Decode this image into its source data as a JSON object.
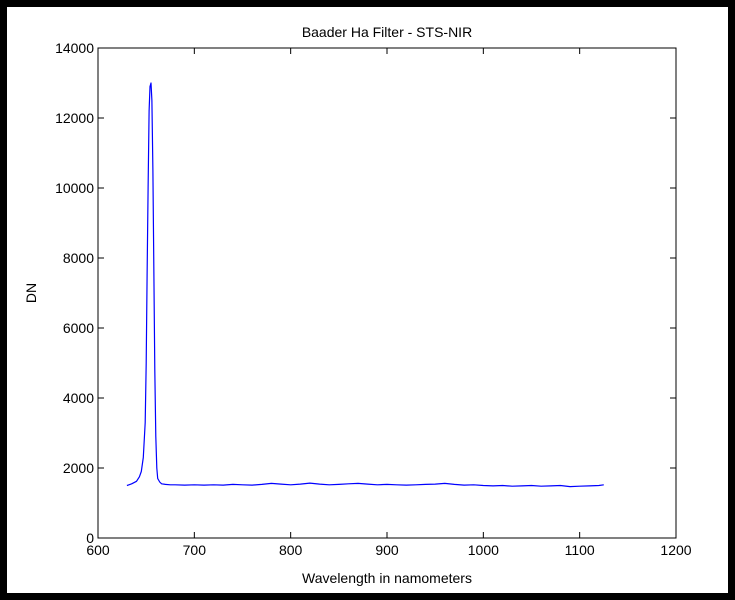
{
  "colors": {
    "outer_border": "#000000",
    "figure_background": "#ffffff",
    "axes_background": "#ffffff",
    "axis_color": "#000000",
    "series_color": "#0000ff"
  },
  "chart_data": {
    "type": "line",
    "title": "Baader Ha Filter - STS-NIR",
    "xlabel": "Wavelength in namometers",
    "ylabel": "DN",
    "xlim": [
      600,
      1200
    ],
    "ylim": [
      0,
      14000
    ],
    "xticks": [
      600,
      700,
      800,
      900,
      1000,
      1100,
      1200
    ],
    "yticks": [
      0,
      2000,
      4000,
      6000,
      8000,
      10000,
      12000,
      14000
    ],
    "xtick_labels": [
      "600",
      "700",
      "800",
      "900",
      "1000",
      "1100",
      "1200"
    ],
    "ytick_labels": [
      "0",
      "2000",
      "4000",
      "6000",
      "8000",
      "10000",
      "12000",
      "14000"
    ],
    "grid": false,
    "legend": "none",
    "series": [
      {
        "x": [
          630,
          635,
          640,
          643,
          645,
          647,
          649,
          650,
          651,
          652,
          653,
          654,
          655,
          656,
          657,
          658,
          659,
          660,
          661,
          662,
          664,
          666,
          670,
          675,
          680,
          690,
          700,
          710,
          720,
          730,
          740,
          750,
          760,
          770,
          780,
          790,
          800,
          810,
          820,
          830,
          840,
          850,
          860,
          870,
          880,
          890,
          900,
          910,
          920,
          930,
          940,
          950,
          960,
          970,
          980,
          990,
          1000,
          1010,
          1020,
          1030,
          1040,
          1050,
          1060,
          1070,
          1080,
          1090,
          1100,
          1110,
          1120,
          1125
        ],
        "y": [
          1500,
          1550,
          1620,
          1750,
          1900,
          2300,
          3300,
          5000,
          7500,
          10000,
          12200,
          12900,
          13000,
          12500,
          10500,
          7500,
          4800,
          2900,
          2000,
          1700,
          1600,
          1550,
          1530,
          1520,
          1520,
          1510,
          1520,
          1510,
          1520,
          1510,
          1530,
          1520,
          1510,
          1530,
          1560,
          1540,
          1520,
          1540,
          1570,
          1540,
          1520,
          1530,
          1550,
          1560,
          1540,
          1520,
          1530,
          1520,
          1510,
          1520,
          1530,
          1540,
          1560,
          1530,
          1510,
          1520,
          1500,
          1490,
          1500,
          1480,
          1490,
          1500,
          1480,
          1490,
          1500,
          1470,
          1480,
          1490,
          1500,
          1520
        ]
      }
    ]
  }
}
